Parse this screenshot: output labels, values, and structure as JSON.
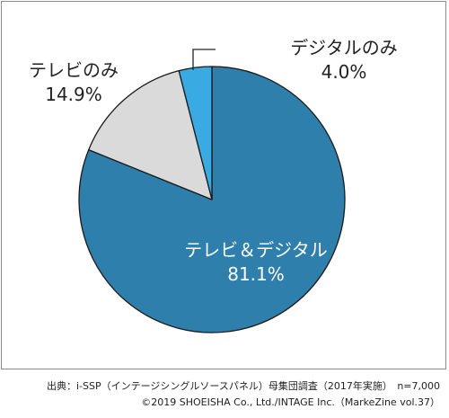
{
  "chart_data": {
    "type": "pie",
    "slices": [
      {
        "label": "テレビ＆デジタル",
        "value": 81.1,
        "value_label": "81.1%",
        "color": "#2e7fab"
      },
      {
        "label": "テレビのみ",
        "value": 14.9,
        "value_label": "14.9%",
        "color": "#dadada"
      },
      {
        "label": "デジタルのみ",
        "value": 4.0,
        "value_label": "4.0%",
        "color": "#3aaae3"
      }
    ],
    "start": "top",
    "direction": "clockwise",
    "legend": "none"
  },
  "footer": {
    "source": "出典：i-SSP（インテージシングルソースパネル）母集団調査（2017年実施）　n=7,000",
    "copyright": "©2019 SHOEISHA Co., Ltd./INTAGE Inc.（MarkeZine vol.37）"
  }
}
